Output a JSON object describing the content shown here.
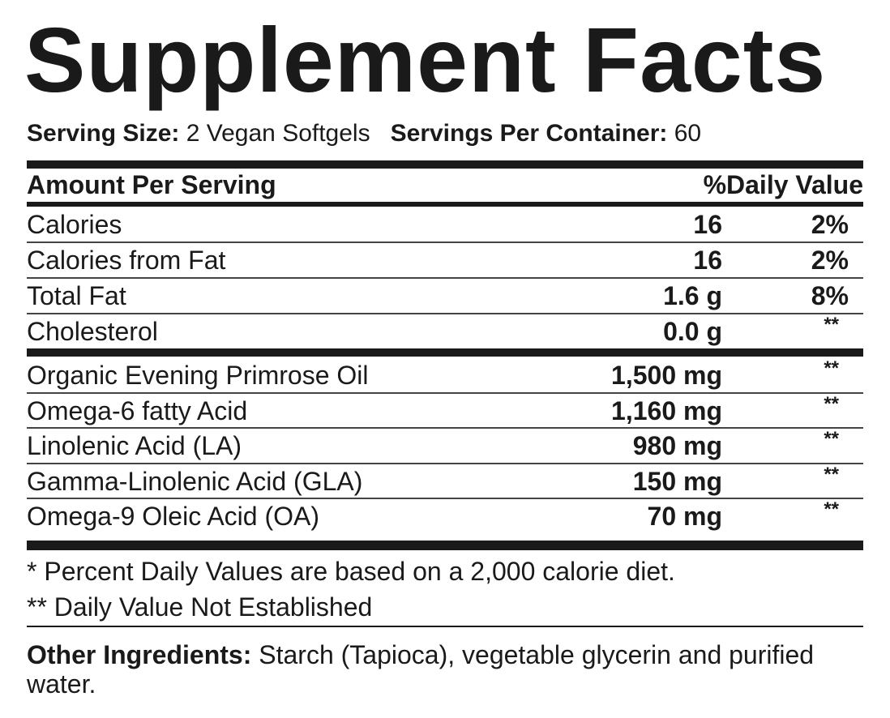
{
  "title": "Supplement Facts",
  "serving": {
    "size_label": "Serving Size:",
    "size_value": "2 Vegan Softgels",
    "per_container_label": "Servings Per Container:",
    "per_container_value": "60"
  },
  "header": {
    "amount": "Amount Per Serving",
    "dv": "%Daily Value"
  },
  "nutrients": [
    {
      "name": "Calories",
      "amount": "16",
      "dv": "2%"
    },
    {
      "name": "Calories from Fat",
      "amount": "16",
      "dv": "2%"
    },
    {
      "name": "Total Fat",
      "amount": "1.6 g",
      "dv": "8%"
    },
    {
      "name": "Cholesterol",
      "amount": "0.0 g",
      "dv": "**"
    }
  ],
  "ingredients": [
    {
      "name": "Organic Evening Primrose Oil",
      "amount": "1,500 mg",
      "dv": "**"
    },
    {
      "name": "Omega-6 fatty Acid",
      "amount": "1,160 mg",
      "dv": "**"
    },
    {
      "name": "Linolenic Acid (LA)",
      "amount": "980 mg",
      "dv": "**"
    },
    {
      "name": "Gamma-Linolenic Acid (GLA)",
      "amount": "150 mg",
      "dv": "**"
    },
    {
      "name": "Omega-9 Oleic Acid (OA)",
      "amount": "70 mg",
      "dv": "**"
    }
  ],
  "footnotes": [
    "*  Percent Daily Values are based on a 2,000 calorie diet.",
    "** Daily Value Not Established"
  ],
  "other_ingredients": {
    "label": "Other Ingredients:",
    "value": "Starch (Tapioca), vegetable glycerin and purified water."
  }
}
